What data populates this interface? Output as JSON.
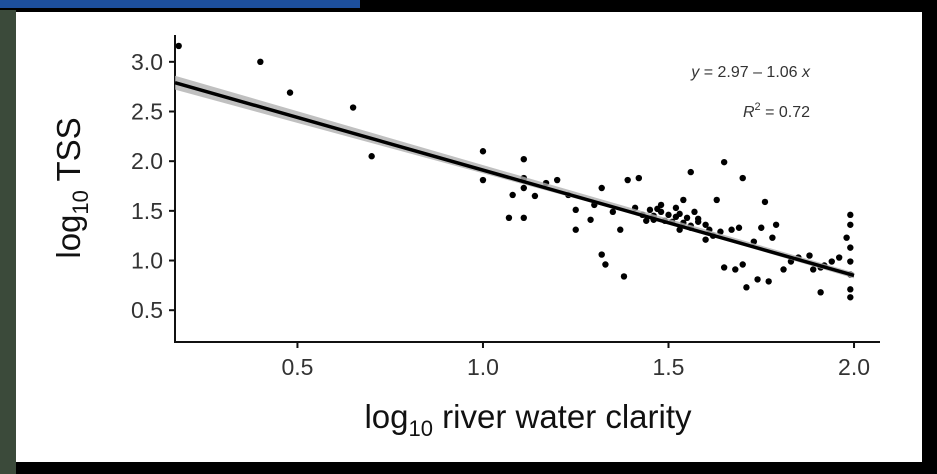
{
  "chart_data": {
    "type": "scatter",
    "x_label": [
      "log",
      "10",
      " river water clarity"
    ],
    "y_label": [
      "log",
      "10",
      " TSS"
    ],
    "equation": [
      "y",
      " = 2.97 – 1.06 ",
      "x"
    ],
    "r_squared": [
      "R",
      "2",
      " = 0.72"
    ],
    "color": "#000000",
    "x": [
      0.18,
      0.4,
      0.48,
      0.65,
      0.7,
      1.0,
      1.0,
      1.08,
      1.07,
      1.11,
      1.11,
      1.11,
      1.11,
      1.14,
      1.17,
      1.2,
      1.23,
      1.25,
      1.25,
      1.29,
      1.3,
      1.32,
      1.33,
      1.32,
      1.35,
      1.37,
      1.38,
      1.39,
      1.42,
      1.41,
      1.43,
      1.45,
      1.46,
      1.48,
      1.48,
      1.5,
      1.51,
      1.52,
      1.53,
      1.54,
      1.55,
      1.56,
      1.56,
      1.57,
      1.58,
      1.6,
      1.61,
      1.62,
      1.63,
      1.64,
      1.65,
      1.65,
      1.67,
      1.68,
      1.69,
      1.7,
      1.7,
      1.71,
      1.73,
      1.74,
      1.75,
      1.76,
      1.77,
      1.78,
      1.79,
      1.81,
      1.83,
      1.85,
      1.88,
      1.89,
      1.91,
      1.91,
      1.92,
      1.94,
      1.96,
      1.98,
      1.99,
      1.99,
      1.99,
      1.99,
      1.99,
      1.99,
      1.99,
      1.46,
      1.49,
      1.52,
      1.54,
      1.58,
      1.6,
      1.47,
      1.53,
      1.56,
      1.44
    ],
    "values": [
      3.16,
      3.0,
      2.69,
      2.54,
      2.05,
      2.1,
      1.81,
      1.66,
      1.43,
      1.43,
      2.02,
      1.83,
      1.73,
      1.65,
      1.78,
      1.81,
      1.66,
      1.51,
      1.31,
      1.41,
      1.56,
      1.06,
      0.96,
      1.73,
      1.49,
      1.31,
      0.84,
      1.81,
      1.83,
      1.53,
      1.46,
      1.51,
      1.41,
      1.56,
      1.49,
      1.46,
      1.39,
      1.53,
      1.31,
      1.61,
      1.43,
      1.89,
      1.35,
      1.49,
      1.39,
      1.21,
      1.31,
      1.25,
      1.61,
      1.29,
      1.99,
      0.93,
      1.31,
      0.91,
      1.33,
      1.83,
      0.96,
      0.73,
      1.19,
      0.81,
      1.33,
      1.59,
      0.79,
      1.23,
      1.36,
      0.91,
      0.99,
      1.03,
      1.05,
      0.91,
      0.93,
      0.68,
      0.95,
      0.99,
      1.03,
      1.23,
      1.46,
      1.36,
      1.13,
      0.99,
      0.86,
      0.71,
      0.63,
      1.45,
      1.4,
      1.44,
      1.38,
      1.42,
      1.36,
      1.52,
      1.47,
      1.33,
      1.4
    ],
    "fit": {
      "color": "#000000",
      "x": [
        0.17,
        2.0
      ],
      "y": [
        2.79,
        0.85
      ]
    },
    "fit_band": {
      "color": "#b0b0b0",
      "x": [
        0.17,
        1.5,
        2.0
      ],
      "lower": [
        2.72,
        1.37,
        0.82
      ],
      "upper": [
        2.86,
        1.42,
        0.88
      ]
    },
    "xlim": [
      0.17,
      2.07
    ],
    "ylim": [
      0.18,
      3.27
    ],
    "xticks": [
      0.5,
      {
        "value": 1,
        "label": "1.0"
      },
      1.5,
      {
        "value": 2,
        "label": "2.0"
      }
    ],
    "yticks": [
      0.5,
      {
        "value": 1,
        "label": "1.0"
      },
      1.5,
      {
        "value": 2,
        "label": "2.0"
      },
      2.5,
      {
        "value": 3,
        "label": "3.0"
      }
    ],
    "grid": false
  }
}
